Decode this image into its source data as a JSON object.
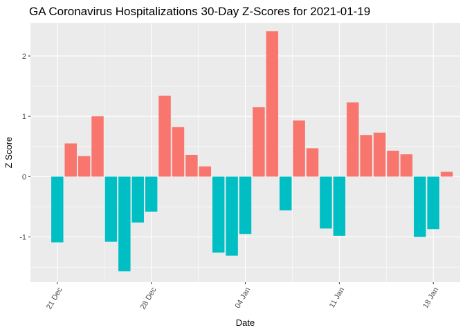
{
  "chart_data": {
    "type": "bar",
    "title": "GA Coronavirus Hospitalizations 30-Day Z-Scores for 2021-01-19",
    "xlabel": "Date",
    "ylabel": "Z Score",
    "x_tick_labels": [
      "21 Dec",
      "28 Dec",
      "04 Jan",
      "11 Jan",
      "18 Jan"
    ],
    "x_tick_dates": [
      "2020-12-21",
      "2020-12-28",
      "2021-01-04",
      "2021-01-11",
      "2021-01-18"
    ],
    "y_ticks": [
      -1,
      0,
      1,
      2
    ],
    "y_tick_labels": [
      "-1",
      "0",
      "1",
      "2"
    ],
    "ylim": [
      -1.75,
      2.55
    ],
    "xlim": [
      "2020-12-19",
      "2021-01-20"
    ],
    "grid": true,
    "legend": "none",
    "colors": {
      "positive": "#F8766D",
      "negative": "#00BFC4",
      "panel": "#EBEBEB",
      "grid": "#FFFFFF"
    },
    "dates": [
      "2020-12-21",
      "2020-12-22",
      "2020-12-23",
      "2020-12-24",
      "2020-12-25",
      "2020-12-26",
      "2020-12-27",
      "2020-12-28",
      "2020-12-29",
      "2020-12-30",
      "2020-12-31",
      "2021-01-01",
      "2021-01-02",
      "2021-01-03",
      "2021-01-04",
      "2021-01-05",
      "2021-01-06",
      "2021-01-07",
      "2021-01-08",
      "2021-01-09",
      "2021-01-10",
      "2021-01-11",
      "2021-01-12",
      "2021-01-13",
      "2021-01-14",
      "2021-01-15",
      "2021-01-16",
      "2021-01-17",
      "2021-01-18",
      "2021-01-19"
    ],
    "values": [
      -1.09,
      0.55,
      0.34,
      1.0,
      -1.08,
      -1.57,
      -0.76,
      -0.58,
      1.34,
      0.82,
      0.36,
      0.17,
      -1.26,
      -1.31,
      -0.95,
      1.15,
      2.41,
      -0.56,
      0.93,
      0.47,
      -0.86,
      -0.98,
      1.23,
      0.69,
      0.73,
      0.43,
      0.37,
      -1.0,
      -0.87,
      0.08
    ]
  }
}
